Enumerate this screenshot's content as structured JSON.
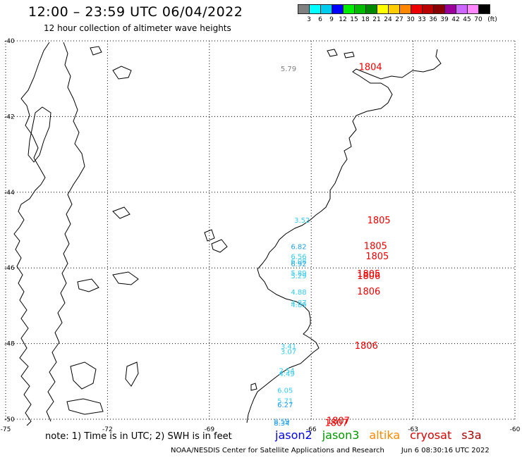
{
  "title": "12:00 – 23:59 UTC 06/04/2022",
  "subtitle": "12 hour collection of altimeter wave heights",
  "legend": {
    "colors": [
      "#808080",
      "#00ffff",
      "#00ccee",
      "#0000ff",
      "#00ee00",
      "#00bb00",
      "#008800",
      "#ffff00",
      "#ffcc00",
      "#ff8800",
      "#ee0000",
      "#bb0000",
      "#880000",
      "#990099",
      "#cc66ff",
      "#ff88ff",
      "#000000"
    ],
    "labels": [
      "3",
      "6",
      "9",
      "12",
      "15",
      "18",
      "21",
      "24",
      "27",
      "30",
      "33",
      "36",
      "39",
      "42",
      "45",
      "70"
    ],
    "unit": "(ft)"
  },
  "axes": {
    "lat_labels": [
      "-40",
      "-42",
      "-44",
      "-46",
      "-48",
      "-50"
    ],
    "lon_labels": [
      "-75",
      "-72",
      "-69",
      "-66",
      "-63",
      "-60"
    ]
  },
  "swh_labels": [
    {
      "text": "5.79",
      "color": "#808080",
      "lon": -66.9,
      "lat": -40.8
    },
    {
      "text": "3.52",
      "color": "#33ccee",
      "lon": -66.5,
      "lat": -44.8
    },
    {
      "text": "6.82",
      "color": "#1ea0ee",
      "lon": -66.6,
      "lat": -45.5
    },
    {
      "text": "6.56",
      "color": "#33ccee",
      "lon": -66.6,
      "lat": -45.76
    },
    {
      "text": "6.08",
      "color": "#33ccee",
      "lon": -66.6,
      "lat": -45.88
    },
    {
      "text": "6.92",
      "color": "#1ea0ee",
      "lon": -66.6,
      "lat": -45.96
    },
    {
      "text": "5.89",
      "color": "#33ccee",
      "lon": -66.6,
      "lat": -46.2
    },
    {
      "text": "5.29",
      "color": "#33ccee",
      "lon": -66.6,
      "lat": -46.28
    },
    {
      "text": "4.88",
      "color": "#33ccee",
      "lon": -66.6,
      "lat": -46.7
    },
    {
      "text": "4.87",
      "color": "#33ccee",
      "lon": -66.6,
      "lat": -46.98
    },
    {
      "text": "4.89",
      "color": "#33ccee",
      "lon": -66.6,
      "lat": -47.04
    },
    {
      "text": "3.41",
      "color": "#33ccee",
      "lon": -66.9,
      "lat": -48.14
    },
    {
      "text": "3.07",
      "color": "#33ccee",
      "lon": -66.9,
      "lat": -48.28
    },
    {
      "text": "2.54",
      "color": "#33ccee",
      "lon": -66.95,
      "lat": -48.78
    },
    {
      "text": "4.49",
      "color": "#33ccee",
      "lon": -66.95,
      "lat": -48.86
    },
    {
      "text": "6.05",
      "color": "#33ccee",
      "lon": -67.0,
      "lat": -49.3
    },
    {
      "text": "5.71",
      "color": "#33ccee",
      "lon": -67.0,
      "lat": -49.58
    },
    {
      "text": "6.27",
      "color": "#1ea0ee",
      "lon": -67.0,
      "lat": -49.68
    },
    {
      "text": "8.59",
      "color": "#1ea0ee",
      "lon": -67.1,
      "lat": -50.12
    },
    {
      "text": "8.34",
      "color": "#1ea0ee",
      "lon": -67.1,
      "lat": -50.17
    }
  ],
  "time_labels": [
    {
      "text": "1804",
      "lon": -64.6,
      "lat": -40.77
    },
    {
      "text": "1805",
      "lon": -64.35,
      "lat": -44.82
    },
    {
      "text": "1805",
      "lon": -64.45,
      "lat": -45.5
    },
    {
      "text": "1805",
      "lon": -64.4,
      "lat": -45.77
    },
    {
      "text": "1805",
      "lon": -64.65,
      "lat": -46.24
    },
    {
      "text": "1806",
      "lon": -64.65,
      "lat": -46.29
    },
    {
      "text": "1806",
      "lon": -64.65,
      "lat": -46.7
    },
    {
      "text": "1806",
      "lon": -64.72,
      "lat": -48.14
    },
    {
      "text": "1807",
      "lon": -65.55,
      "lat": -50.12
    },
    {
      "text": "1807",
      "lon": -65.6,
      "lat": -50.18
    }
  ],
  "time_label_color": "#ee0000",
  "note": "note:  1) Time is in UTC;  2) SWH is in feet",
  "satellites": [
    {
      "name": "jason2",
      "color": "#0000ee"
    },
    {
      "name": "jason3",
      "color": "#009900"
    },
    {
      "name": "altika",
      "color": "#ff8800"
    },
    {
      "name": "cryosat",
      "color": "#dd0000"
    },
    {
      "name": "s3a",
      "color": "#aa0000"
    }
  ],
  "credit": "NOAA/NESDIS Center for Satellite Applications and Research",
  "timestamp": "Jun  6 08:30:16 UTC 2022"
}
